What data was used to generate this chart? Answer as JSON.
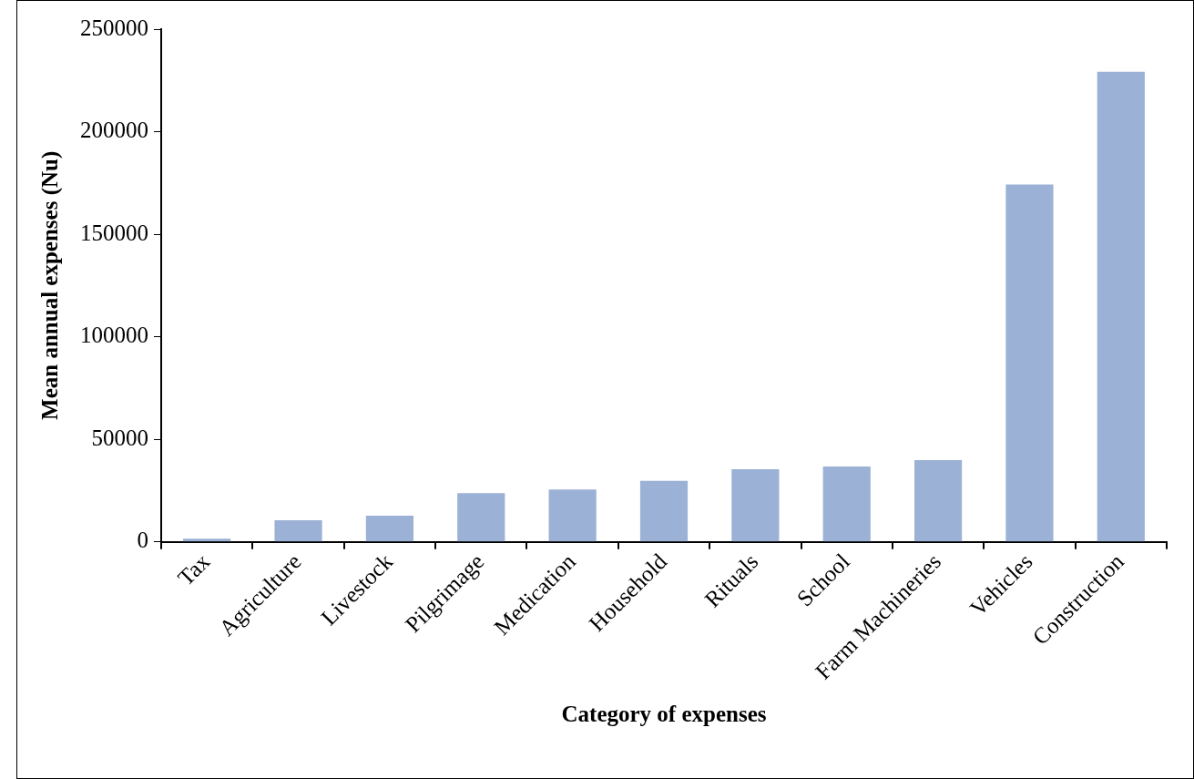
{
  "chart_data": {
    "type": "bar",
    "xlabel": "Category of expenses",
    "ylabel": "Mean annual expenses (Nu)",
    "categories": [
      "Tax",
      "Agriculture",
      "Livestock",
      "Pilgrimage",
      "Medication",
      "Household",
      "Rituals",
      "School",
      "Farm Machineries",
      "Vehicles",
      "Construction"
    ],
    "values": [
      1500,
      10500,
      12700,
      23700,
      25500,
      29700,
      35400,
      36700,
      39800,
      174300,
      229200
    ],
    "color": "#9cb1d6",
    "ylim": [
      0,
      250000
    ],
    "yticks": [
      0,
      50000,
      100000,
      150000,
      200000,
      250000
    ],
    "grid": false,
    "legend": false
  }
}
